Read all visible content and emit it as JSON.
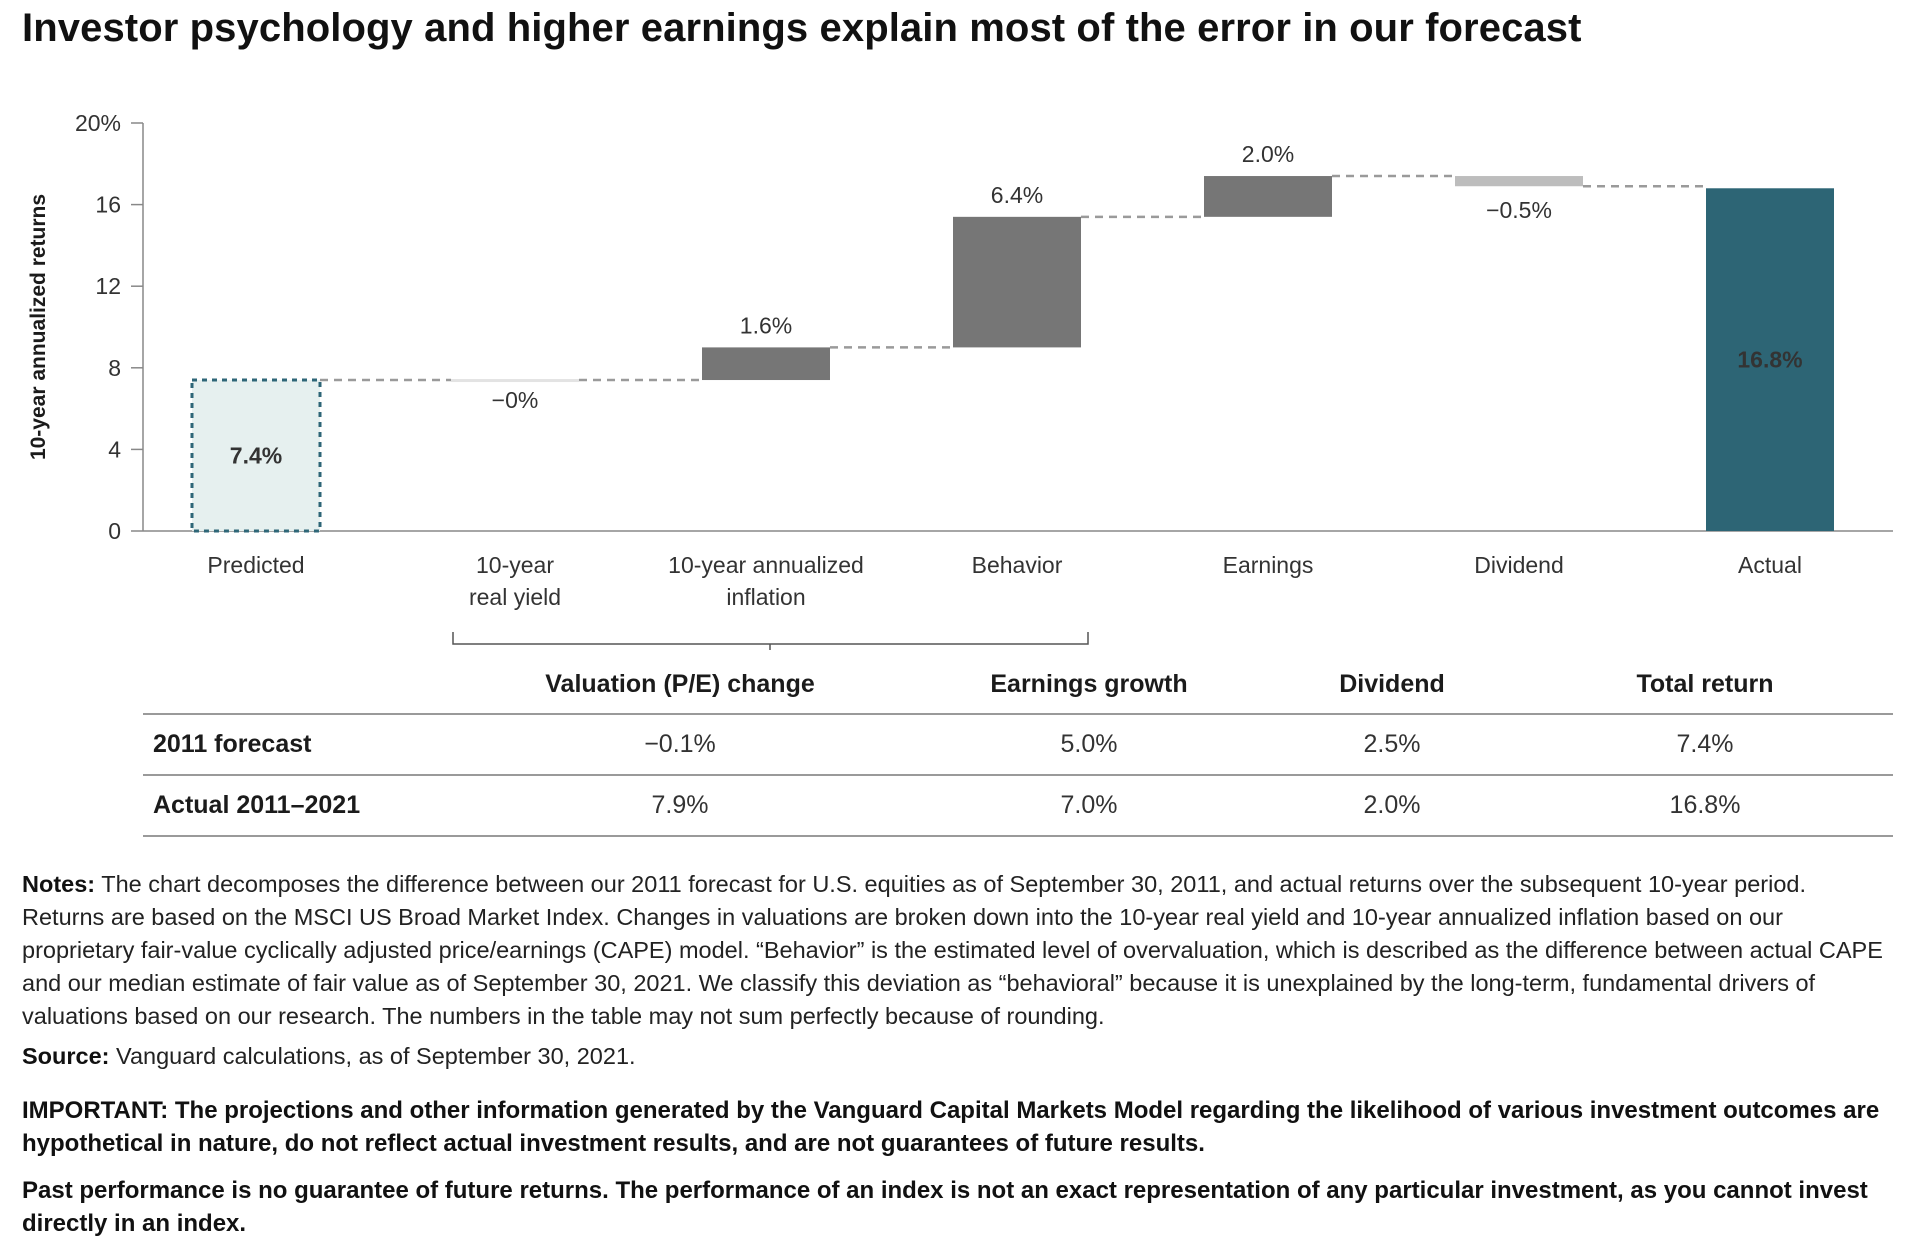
{
  "title": "Investor psychology and higher earnings explain most of the error in our forecast",
  "chart_data": {
    "type": "waterfall",
    "ylabel": "10-year annualized returns",
    "ylim": [
      0,
      20
    ],
    "yticks": [
      "20%",
      "16",
      "12",
      "8",
      "4",
      "0"
    ],
    "ytick_values": [
      20,
      16,
      12,
      8,
      4,
      0
    ],
    "steps": [
      {
        "category": "Predicted",
        "label_lines": [
          "Predicted"
        ],
        "kind": "total-predicted",
        "start": 0,
        "end": 7.4,
        "value_label": "7.4%"
      },
      {
        "category": "10-year real yield",
        "label_lines": [
          "10-year",
          "real yield"
        ],
        "kind": "change",
        "start": 7.4,
        "end": 7.4,
        "value_label": "−0%"
      },
      {
        "category": "10-year annualized inflation",
        "label_lines": [
          "10-year annualized",
          "inflation"
        ],
        "kind": "change",
        "start": 7.4,
        "end": 9.0,
        "value_label": "1.6%"
      },
      {
        "category": "Behavior",
        "label_lines": [
          "Behavior"
        ],
        "kind": "change",
        "start": 9.0,
        "end": 15.4,
        "value_label": "6.4%"
      },
      {
        "category": "Earnings",
        "label_lines": [
          "Earnings"
        ],
        "kind": "change",
        "start": 15.4,
        "end": 17.4,
        "value_label": "2.0%"
      },
      {
        "category": "Dividend",
        "label_lines": [
          "Dividend"
        ],
        "kind": "change",
        "start": 17.4,
        "end": 16.9,
        "value_label": "−0.5%"
      },
      {
        "category": "Actual",
        "label_lines": [
          "Actual"
        ],
        "kind": "total-actual",
        "start": 0,
        "end": 16.8,
        "value_label": "16.8%"
      }
    ],
    "colors": {
      "predicted_fill": "#e6f0ef",
      "predicted_border": "#2e6677",
      "predicted_text": "#2e6677",
      "change": "#767676",
      "negative": "#bdbdbd",
      "actual": "#2d6575",
      "actual_text": "#ffffff",
      "connector": "#9a9a9a",
      "axis": "#888888"
    }
  },
  "table": {
    "columns": [
      "",
      "Valuation (P/E) change",
      "Earnings growth",
      "Dividend",
      "Total return"
    ],
    "rows": [
      {
        "label": "2011 forecast",
        "values": [
          "−0.1%",
          "5.0%",
          "2.5%",
          "7.4%"
        ]
      },
      {
        "label": "Actual 2011–2021",
        "values": [
          "7.9%",
          "7.0%",
          "2.0%",
          "16.8%"
        ]
      }
    ]
  },
  "notes": {
    "label": "Notes:",
    "text": "The chart decomposes the difference between our 2011 forecast for U.S. equities as of September 30, 2011, and actual returns over the subsequent 10-year period. Returns are based on the MSCI US Broad Market Index. Changes in valuations are broken down into the 10-year real yield and 10-year annualized inflation based on our proprietary fair-value cyclically adjusted price/earnings (CAPE) model. “Behavior” is the estimated level of overvaluation, which is described as the difference between actual CAPE and our median estimate of fair value as of September 30, 2021. We classify this deviation as “behavioral” because it is unexplained by the long-term, fundamental drivers of valuations based on our research. The numbers in the table may not sum perfectly because of rounding."
  },
  "source": {
    "label": "Source:",
    "text": "Vanguard calculations, as of September 30, 2021."
  },
  "important": "IMPORTANT: The projections and other information generated by the Vanguard Capital Markets Model regarding the likelihood of various investment outcomes are hypothetical in nature, do not reflect actual investment results, and are not guarantees of future results.",
  "disclaimer": "Past performance is no guarantee of future returns. The performance of an index is not an exact representation of any particular investment, as you cannot invest directly in an index."
}
